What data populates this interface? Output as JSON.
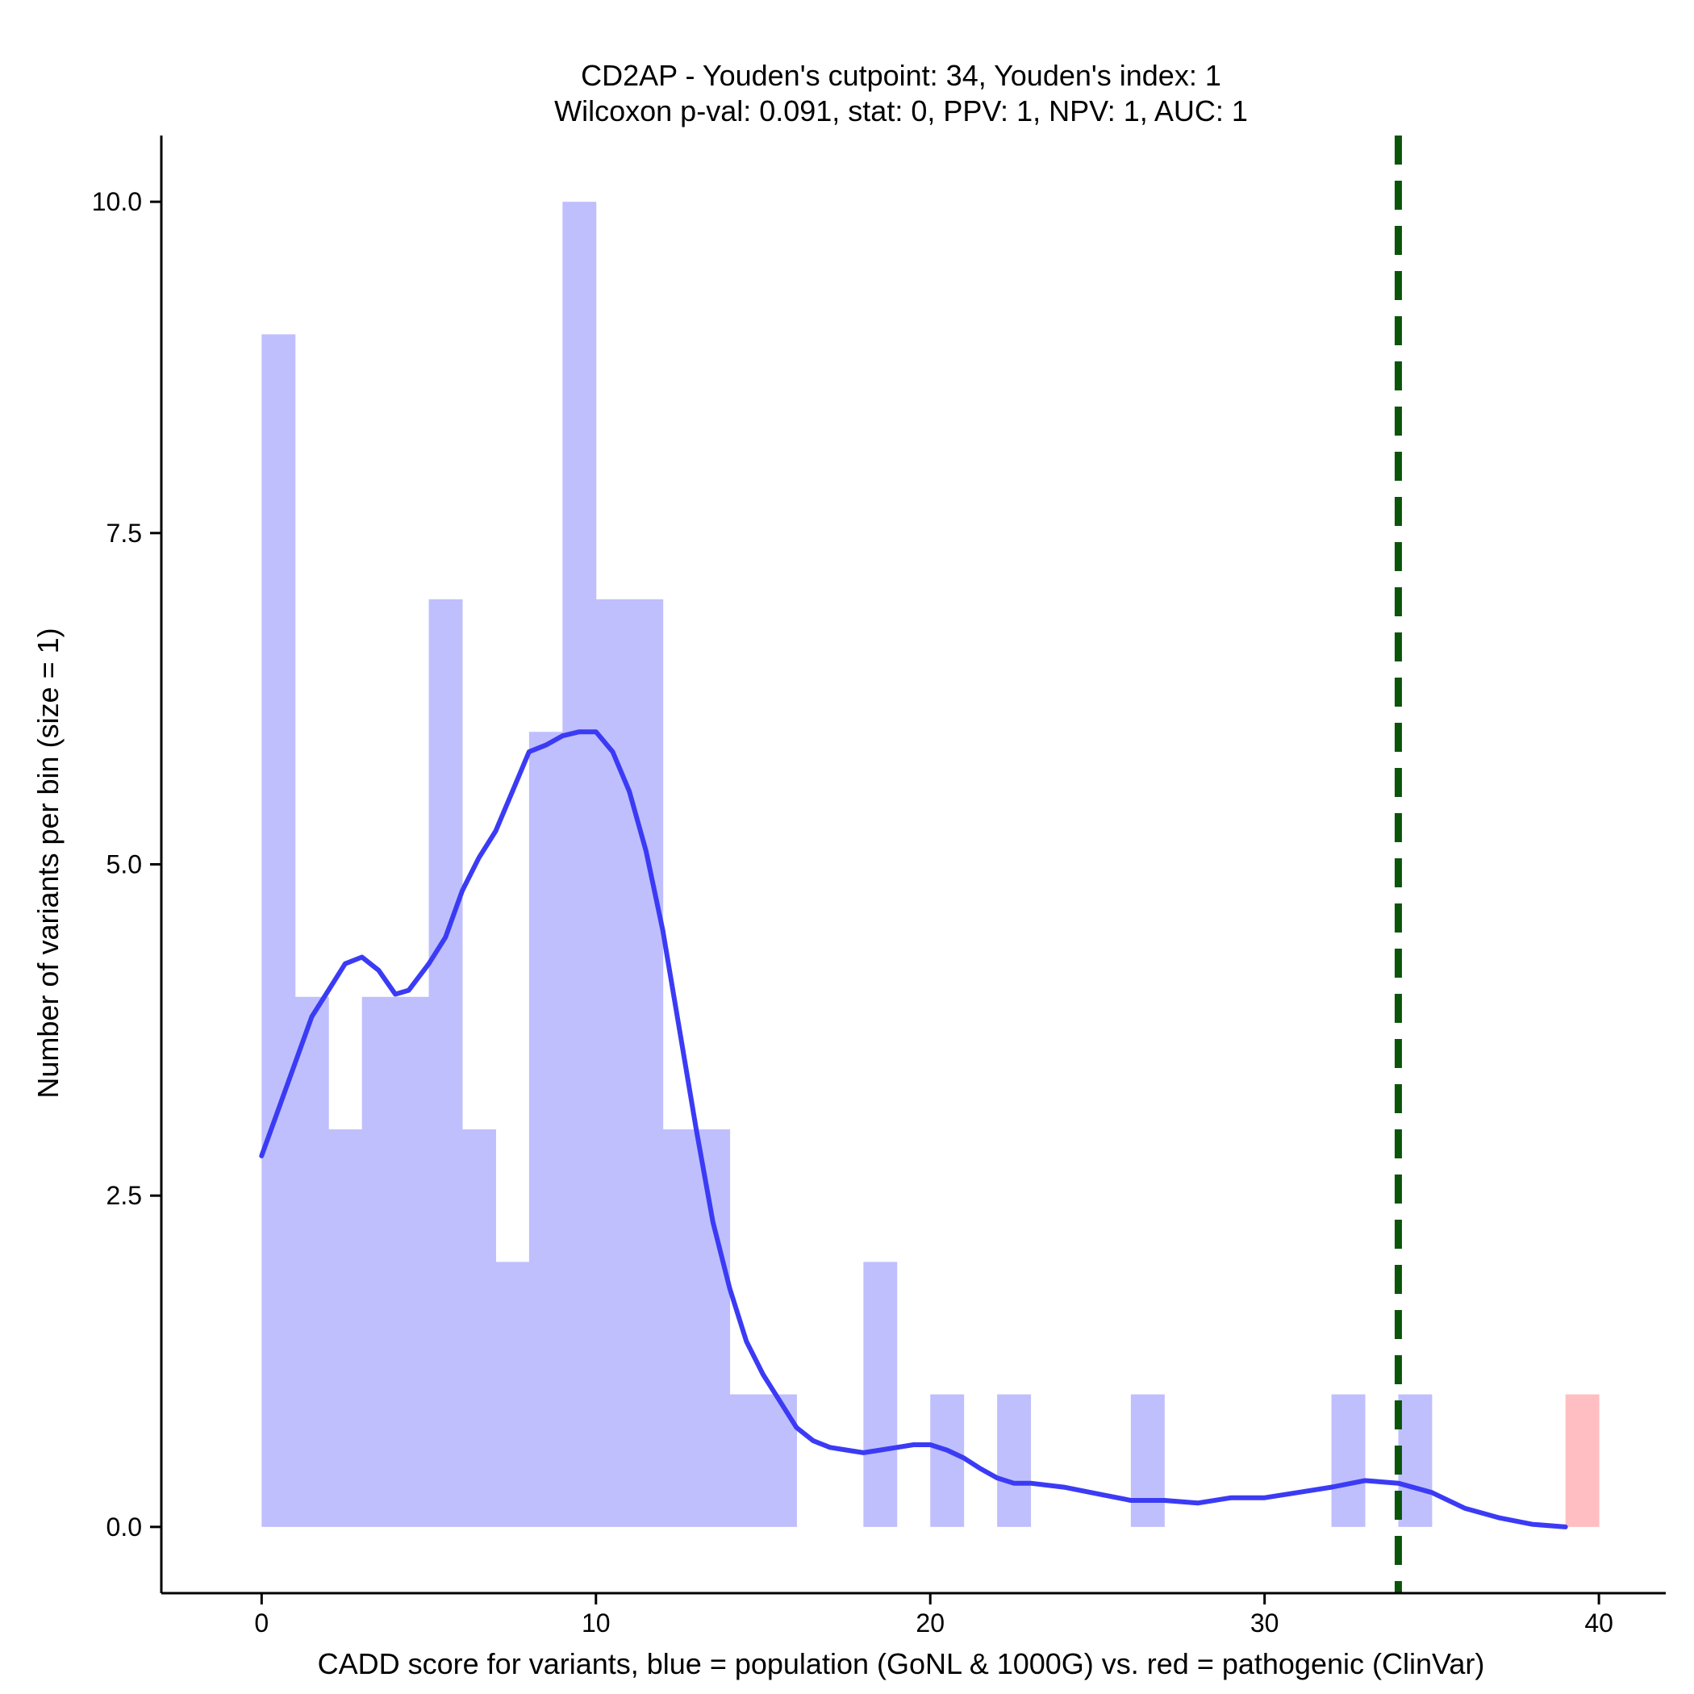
{
  "chart_data": {
    "type": "bar",
    "title": "CD2AP - Youden's cutpoint: 34, Youden's index: 1",
    "subtitle": "Wilcoxon p-val: 0.091, stat: 0, PPV: 1, NPV: 1, AUC: 1",
    "xlabel": "CADD score for variants, blue = population (GoNL & 1000G) vs. red = pathogenic (ClinVar)",
    "ylabel": "Number of variants per bin (size = 1)",
    "xlim": [
      -3,
      42
    ],
    "ylim": [
      -0.5,
      10.5
    ],
    "xticks": [
      0,
      10,
      20,
      30,
      40
    ],
    "xtick_labels": [
      "0",
      "10",
      "20",
      "30",
      "40"
    ],
    "yticks": [
      0,
      2.5,
      5,
      7.5,
      10
    ],
    "ytick_labels": [
      "0.0",
      "2.5",
      "5.0",
      "7.5",
      "10.0"
    ],
    "bin_size": 1,
    "grid": false,
    "cutpoint": 34,
    "colors": {
      "population": "#bfbffd",
      "pathogenic": "#ffbfc2",
      "density": "#3b3bf5",
      "cutpoint": "#0b550b"
    },
    "series": [
      {
        "key": "population",
        "bins": [
          {
            "x0": 0,
            "x1": 1,
            "count": 9
          },
          {
            "x0": 1,
            "x1": 2,
            "count": 4
          },
          {
            "x0": 2,
            "x1": 3,
            "count": 3
          },
          {
            "x0": 3,
            "x1": 4,
            "count": 4
          },
          {
            "x0": 4,
            "x1": 5,
            "count": 4
          },
          {
            "x0": 5,
            "x1": 6,
            "count": 7
          },
          {
            "x0": 6,
            "x1": 7,
            "count": 3
          },
          {
            "x0": 7,
            "x1": 8,
            "count": 2
          },
          {
            "x0": 8,
            "x1": 9,
            "count": 6
          },
          {
            "x0": 9,
            "x1": 10,
            "count": 10
          },
          {
            "x0": 10,
            "x1": 11,
            "count": 7
          },
          {
            "x0": 11,
            "x1": 12,
            "count": 7
          },
          {
            "x0": 12,
            "x1": 13,
            "count": 3
          },
          {
            "x0": 13,
            "x1": 14,
            "count": 3
          },
          {
            "x0": 14,
            "x1": 15,
            "count": 1
          },
          {
            "x0": 15,
            "x1": 16,
            "count": 1
          },
          {
            "x0": 18,
            "x1": 19,
            "count": 2
          },
          {
            "x0": 20,
            "x1": 21,
            "count": 1
          },
          {
            "x0": 22,
            "x1": 23,
            "count": 1
          },
          {
            "x0": 26,
            "x1": 27,
            "count": 1
          },
          {
            "x0": 32,
            "x1": 33,
            "count": 1
          },
          {
            "x0": 34,
            "x1": 35,
            "count": 1
          }
        ]
      },
      {
        "key": "pathogenic",
        "bins": [
          {
            "x0": 39,
            "x1": 40,
            "count": 1
          }
        ]
      }
    ],
    "density_curve": {
      "x": [
        0,
        0.5,
        1,
        1.5,
        2,
        2.5,
        3,
        3.5,
        4,
        4.4,
        5,
        5.5,
        6,
        6.5,
        7,
        7.5,
        8,
        8.5,
        9,
        9.5,
        10,
        10.5,
        11,
        11.5,
        12,
        12.5,
        13,
        13.5,
        14,
        14.5,
        15,
        15.5,
        16,
        16.5,
        17,
        17.5,
        18,
        18.5,
        19,
        19.5,
        20,
        20.5,
        21,
        21.5,
        22,
        22.5,
        23,
        24,
        25,
        26,
        27,
        28,
        29,
        30,
        31,
        32,
        33,
        34,
        35,
        36,
        37,
        38,
        39
      ],
      "y": [
        2.8,
        3.15,
        3.5,
        3.85,
        4.05,
        4.25,
        4.3,
        4.2,
        4.02,
        4.05,
        4.25,
        4.45,
        4.8,
        5.05,
        5.25,
        5.55,
        5.85,
        5.9,
        5.97,
        6.0,
        6.0,
        5.85,
        5.55,
        5.1,
        4.5,
        3.75,
        3.0,
        2.3,
        1.8,
        1.4,
        1.15,
        0.95,
        0.75,
        0.65,
        0.6,
        0.58,
        0.56,
        0.58,
        0.6,
        0.62,
        0.62,
        0.58,
        0.52,
        0.44,
        0.37,
        0.33,
        0.33,
        0.3,
        0.25,
        0.2,
        0.2,
        0.18,
        0.22,
        0.22,
        0.26,
        0.3,
        0.35,
        0.33,
        0.26,
        0.14,
        0.07,
        0.02,
        0.0
      ]
    }
  }
}
